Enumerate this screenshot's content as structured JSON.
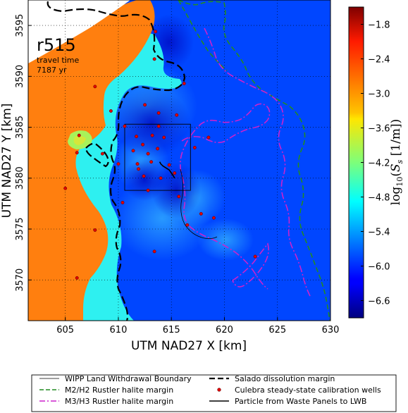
{
  "chart_data": {
    "type": "heatmap",
    "xlabel": "UTM NAD27 X [km]",
    "ylabel": "UTM NAD27 Y [km]",
    "xlim": [
      601.5,
      630
    ],
    "ylim": [
      3566,
      3597.5
    ],
    "xticks": [
      605,
      610,
      615,
      620,
      625,
      630
    ],
    "yticks": [
      3570,
      3575,
      3580,
      3585,
      3590,
      3595
    ],
    "grid": true,
    "colorbar": {
      "label": "log10(Ss [1/m])",
      "range": [
        -6.9,
        -1.5
      ],
      "ticks": [
        -1.8,
        -2.4,
        -3.0,
        -3.6,
        -4.2,
        -4.8,
        -5.4,
        -6.0,
        -6.6
      ],
      "tick_labels": [
        "−1.8",
        "−2.4",
        "−3.0",
        "−3.6",
        "−4.2",
        "−4.8",
        "−5.4",
        "−6.0",
        "−6.6"
      ],
      "colormap": "jet"
    },
    "annotation": {
      "run_id": "r515",
      "line1": "travel time",
      "line2": "7187 yr"
    },
    "wipp_boundary": {
      "x": [
        610.6,
        616.8
      ],
      "y": [
        3578.8,
        3585.3
      ]
    },
    "wells": [
      {
        "x": 613.5,
        "y": 3594.4
      },
      {
        "x": 613.4,
        "y": 3591.7
      },
      {
        "x": 616.2,
        "y": 3589.3
      },
      {
        "x": 607.8,
        "y": 3589.0
      },
      {
        "x": 612.5,
        "y": 3587.2
      },
      {
        "x": 609.3,
        "y": 3586.6
      },
      {
        "x": 613.8,
        "y": 3586.4
      },
      {
        "x": 615.5,
        "y": 3586.2
      },
      {
        "x": 610.6,
        "y": 3585.1
      },
      {
        "x": 613.8,
        "y": 3585.1
      },
      {
        "x": 606.3,
        "y": 3584.2
      },
      {
        "x": 611.7,
        "y": 3584.1
      },
      {
        "x": 613.2,
        "y": 3584.2
      },
      {
        "x": 614.3,
        "y": 3584.0
      },
      {
        "x": 618.5,
        "y": 3584.0
      },
      {
        "x": 612.3,
        "y": 3583.3
      },
      {
        "x": 617.2,
        "y": 3583.0
      },
      {
        "x": 613.7,
        "y": 3582.9
      },
      {
        "x": 608.5,
        "y": 3582.4
      },
      {
        "x": 611.4,
        "y": 3582.7
      },
      {
        "x": 612.8,
        "y": 3582.4
      },
      {
        "x": 606.1,
        "y": 3582.5
      },
      {
        "x": 611.8,
        "y": 3581.4
      },
      {
        "x": 613.1,
        "y": 3581.6
      },
      {
        "x": 614.8,
        "y": 3581.3
      },
      {
        "x": 610.0,
        "y": 3581.4
      },
      {
        "x": 611.9,
        "y": 3580.9
      },
      {
        "x": 615.3,
        "y": 3580.5
      },
      {
        "x": 612.4,
        "y": 3580.2
      },
      {
        "x": 614.0,
        "y": 3580.0
      },
      {
        "x": 612.8,
        "y": 3578.8
      },
      {
        "x": 605.0,
        "y": 3579.0
      },
      {
        "x": 615.7,
        "y": 3578.2
      },
      {
        "x": 610.4,
        "y": 3577.6
      },
      {
        "x": 617.8,
        "y": 3576.5
      },
      {
        "x": 616.5,
        "y": 3575.4
      },
      {
        "x": 607.8,
        "y": 3574.9
      },
      {
        "x": 619.0,
        "y": 3576.1
      },
      {
        "x": 613.4,
        "y": 3572.8
      },
      {
        "x": 622.9,
        "y": 3572.3
      },
      {
        "x": 606.1,
        "y": 3570.2
      }
    ],
    "particle_path": {
      "x": [
        613.9,
        614.0,
        614.2,
        614.5,
        614.8,
        615.0,
        615.2,
        615.3
      ],
      "y": [
        3581.6,
        3581.4,
        3581.2,
        3581.0,
        3580.8,
        3580.5,
        3580.2,
        3580.0
      ]
    }
  },
  "legend": {
    "items": [
      {
        "label": "WIPP Land Withdrawal Boundary",
        "style": "solid-thin",
        "color": "#000000"
      },
      {
        "label": "Salado dissolution margin",
        "style": "dashed-thick",
        "color": "#000000"
      },
      {
        "label": "M2/H2 Rustler halite margin",
        "style": "dashed",
        "color": "#228b22"
      },
      {
        "label": "Culebra steady-state calibration wells",
        "style": "dot",
        "color": "#dd0000"
      },
      {
        "label": "M3/H3 Rustler halite margin",
        "style": "dashdot",
        "color": "#cc22cc"
      },
      {
        "label": "Particle from Waste Panels to LWB",
        "style": "solid",
        "color": "#000000"
      }
    ]
  }
}
